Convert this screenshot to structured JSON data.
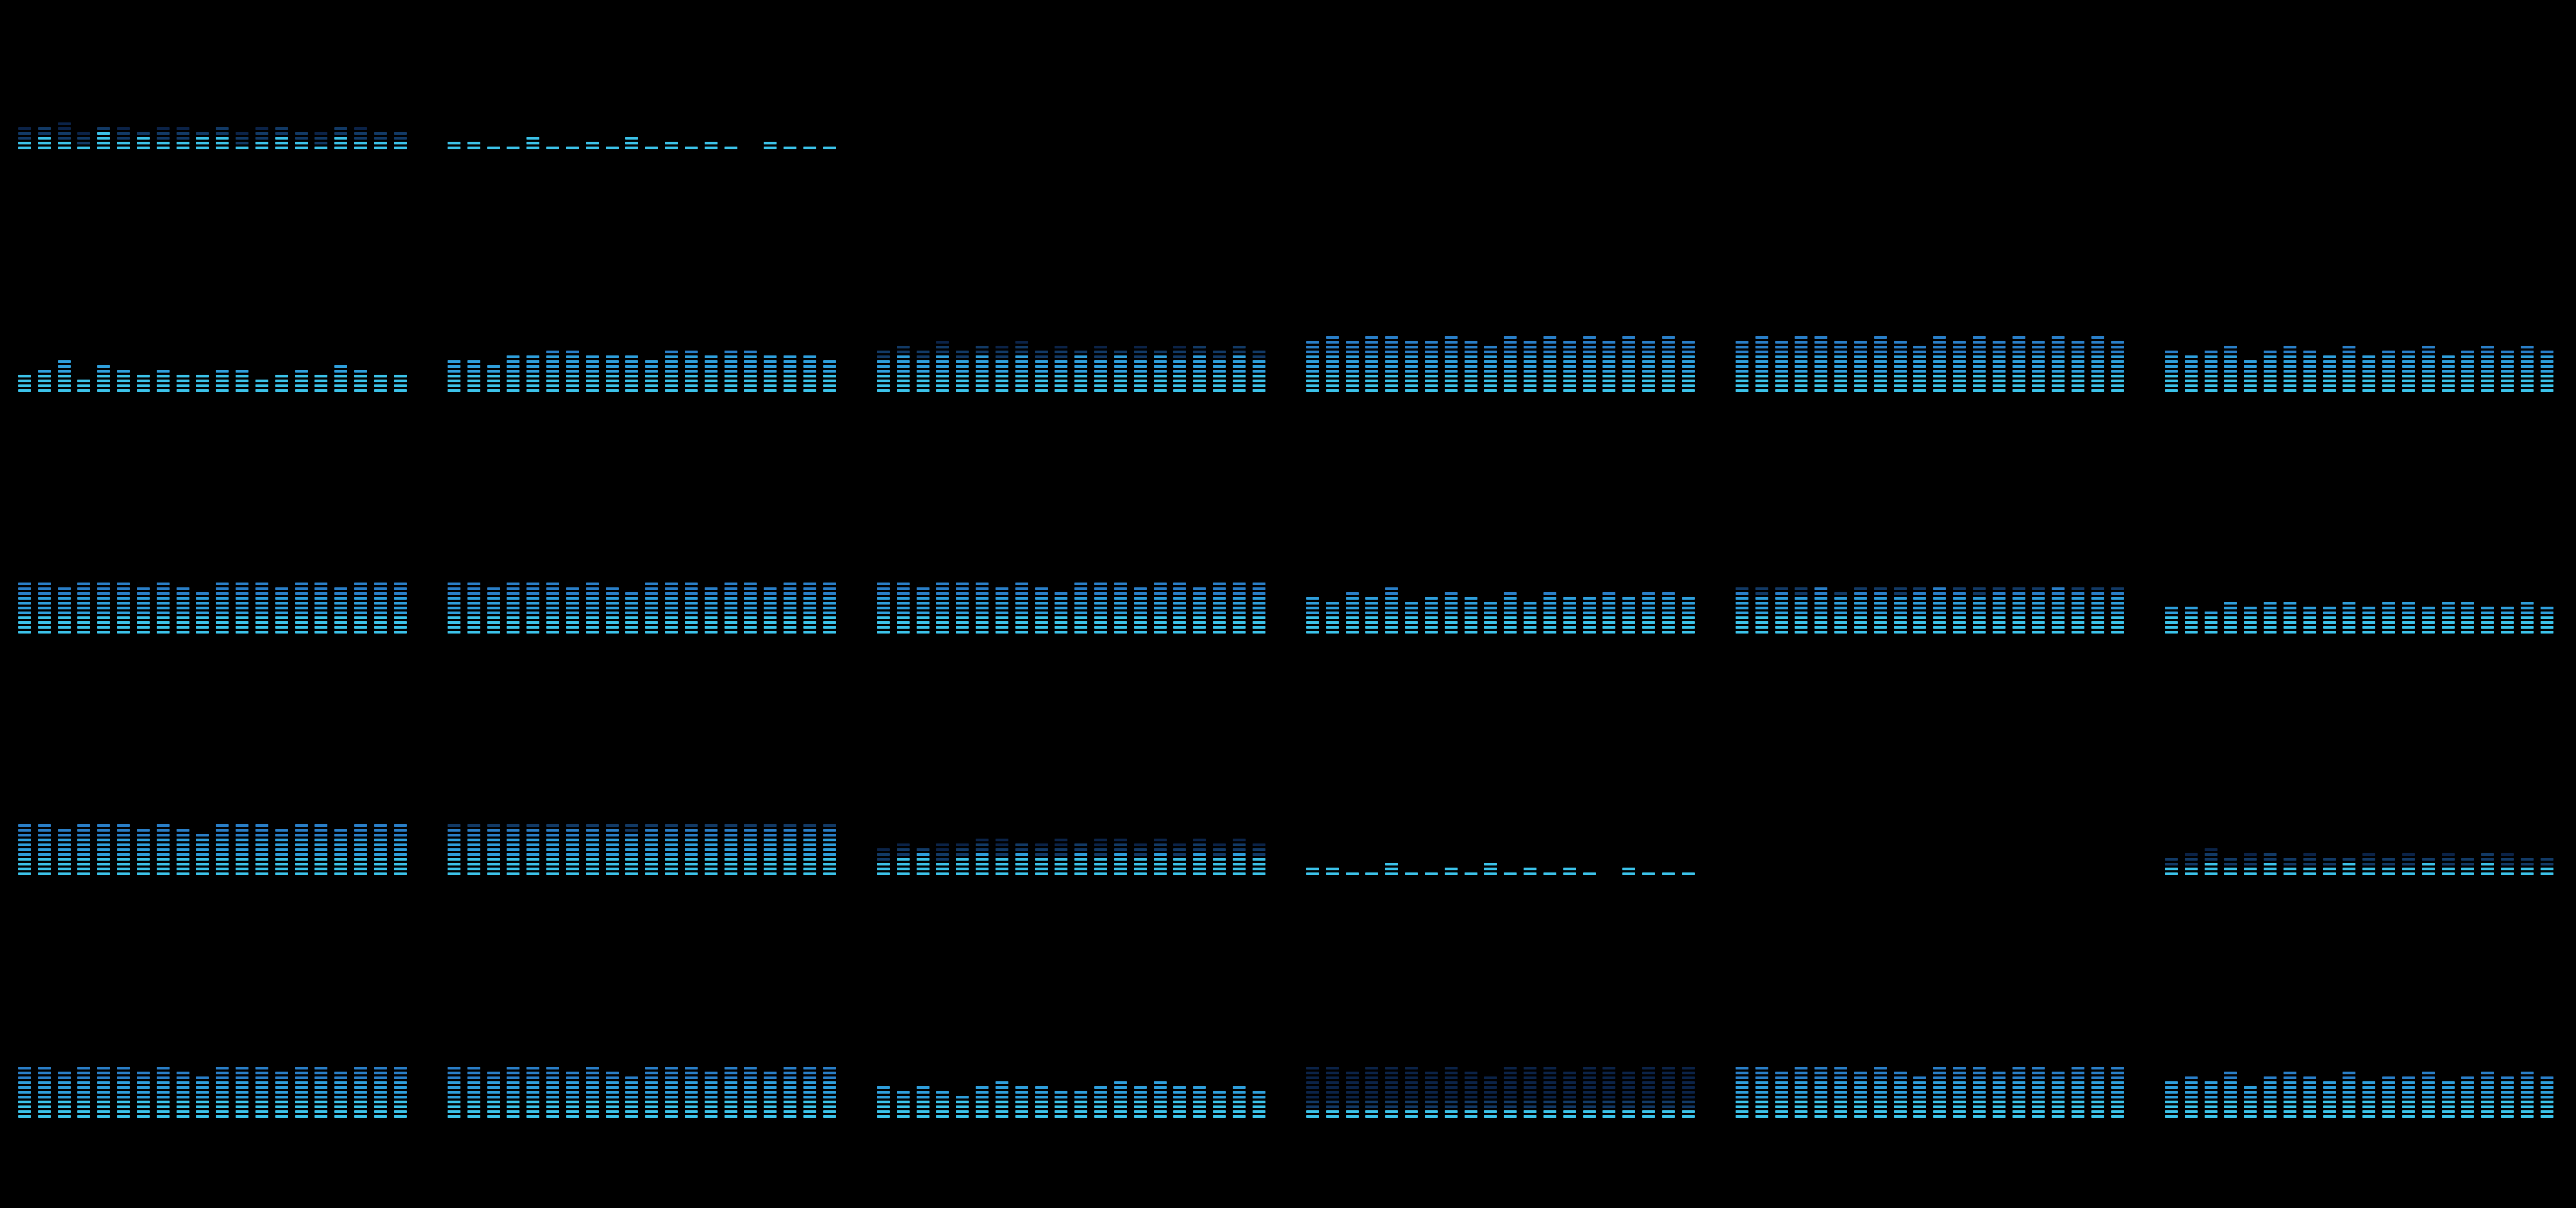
{
  "colors": {
    "background": "#000000",
    "lit_low": "#3cc3ea",
    "lit_mid": "#2f9fdc",
    "lit_high": "#2a7fc8",
    "dim_low": "#123a66",
    "dim_high": "#0b2348"
  },
  "grid": {
    "rows": 5,
    "columns": 6,
    "bands_per_meter": 20,
    "segments_per_band": 12
  },
  "meters": [
    {
      "name": "r1c1",
      "lit": [
        2,
        3,
        2,
        1,
        4,
        2,
        3,
        2,
        2,
        3,
        3,
        1,
        2,
        3,
        2,
        1,
        3,
        2,
        2,
        2
      ],
      "peak": [
        5,
        5,
        6,
        4,
        5,
        5,
        4,
        5,
        5,
        4,
        5,
        4,
        5,
        5,
        4,
        4,
        5,
        5,
        4,
        4
      ]
    },
    {
      "name": "r1c2",
      "lit": [
        2,
        2,
        1,
        1,
        3,
        1,
        1,
        2,
        1,
        3,
        1,
        2,
        1,
        2,
        1,
        0,
        2,
        1,
        1,
        1
      ],
      "peak": [
        2,
        2,
        1,
        1,
        3,
        1,
        1,
        2,
        1,
        3,
        1,
        2,
        1,
        2,
        1,
        0,
        2,
        1,
        1,
        1
      ]
    },
    {
      "name": "r1c3",
      "lit": [],
      "peak": []
    },
    {
      "name": "r1c4",
      "lit": [],
      "peak": []
    },
    {
      "name": "r1c5",
      "lit": [],
      "peak": []
    },
    {
      "name": "r1c6",
      "lit": [],
      "peak": []
    },
    {
      "name": "r2c1",
      "lit": [
        4,
        5,
        7,
        3,
        6,
        5,
        4,
        5,
        4,
        4,
        5,
        5,
        3,
        4,
        5,
        4,
        6,
        5,
        4,
        4
      ],
      "peak": [
        4,
        5,
        7,
        3,
        6,
        5,
        4,
        5,
        4,
        4,
        5,
        5,
        3,
        4,
        5,
        4,
        6,
        5,
        4,
        4
      ]
    },
    {
      "name": "r2c2",
      "lit": [
        7,
        7,
        6,
        8,
        8,
        9,
        9,
        8,
        8,
        8,
        7,
        9,
        9,
        8,
        9,
        9,
        8,
        8,
        8,
        7
      ],
      "peak": [
        7,
        7,
        6,
        8,
        8,
        9,
        9,
        8,
        8,
        8,
        7,
        9,
        9,
        8,
        9,
        9,
        8,
        8,
        8,
        7
      ]
    },
    {
      "name": "r2c3",
      "lit": [
        7,
        8,
        7,
        8,
        7,
        8,
        7,
        8,
        7,
        7,
        8,
        7,
        8,
        7,
        8,
        7,
        8,
        7,
        8,
        7
      ],
      "peak": [
        9,
        10,
        9,
        11,
        9,
        10,
        10,
        11,
        9,
        10,
        9,
        10,
        9,
        10,
        9,
        10,
        10,
        9,
        10,
        9
      ]
    },
    {
      "name": "r2c4",
      "lit": [
        11,
        12,
        11,
        12,
        12,
        11,
        11,
        12,
        11,
        10,
        12,
        11,
        12,
        11,
        12,
        11,
        12,
        11,
        12,
        11
      ],
      "peak": [
        11,
        12,
        11,
        12,
        12,
        11,
        11,
        12,
        11,
        10,
        12,
        11,
        12,
        11,
        12,
        11,
        12,
        11,
        12,
        11
      ]
    },
    {
      "name": "r2c5",
      "lit": [
        11,
        12,
        11,
        12,
        12,
        11,
        11,
        12,
        11,
        10,
        12,
        11,
        12,
        11,
        12,
        11,
        12,
        11,
        12,
        11
      ],
      "peak": [
        11,
        12,
        11,
        12,
        12,
        11,
        11,
        12,
        11,
        10,
        12,
        11,
        12,
        11,
        12,
        11,
        12,
        11,
        12,
        11
      ]
    },
    {
      "name": "r2c6",
      "lit": [
        9,
        8,
        9,
        10,
        7,
        9,
        10,
        9,
        8,
        10,
        8,
        9,
        9,
        10,
        8,
        9,
        10,
        9,
        10,
        9
      ],
      "peak": [
        9,
        8,
        9,
        10,
        7,
        9,
        10,
        9,
        8,
        10,
        8,
        9,
        9,
        10,
        8,
        9,
        10,
        9,
        10,
        9
      ]
    },
    {
      "name": "r3c1",
      "lit": [
        11,
        11,
        10,
        11,
        11,
        11,
        10,
        11,
        10,
        9,
        11,
        11,
        11,
        10,
        11,
        11,
        10,
        11,
        11,
        11
      ],
      "peak": [
        11,
        11,
        10,
        11,
        11,
        11,
        10,
        11,
        10,
        9,
        11,
        11,
        11,
        10,
        11,
        11,
        10,
        11,
        11,
        11
      ]
    },
    {
      "name": "r3c2",
      "lit": [
        11,
        11,
        10,
        11,
        11,
        11,
        10,
        11,
        10,
        9,
        11,
        11,
        11,
        10,
        11,
        11,
        10,
        11,
        11,
        11
      ],
      "peak": [
        11,
        11,
        10,
        11,
        11,
        11,
        10,
        11,
        10,
        9,
        11,
        11,
        11,
        10,
        11,
        11,
        10,
        11,
        11,
        11
      ]
    },
    {
      "name": "r3c3",
      "lit": [
        11,
        11,
        10,
        11,
        11,
        11,
        10,
        11,
        10,
        9,
        11,
        11,
        11,
        10,
        11,
        11,
        10,
        11,
        11,
        11
      ],
      "peak": [
        11,
        11,
        10,
        11,
        11,
        11,
        10,
        11,
        10,
        9,
        11,
        11,
        11,
        10,
        11,
        11,
        10,
        11,
        11,
        11
      ]
    },
    {
      "name": "r3c4",
      "lit": [
        8,
        7,
        9,
        8,
        10,
        7,
        8,
        9,
        8,
        7,
        9,
        7,
        9,
        8,
        8,
        9,
        8,
        9,
        9,
        8
      ],
      "peak": [
        8,
        7,
        9,
        8,
        10,
        7,
        8,
        9,
        8,
        7,
        9,
        7,
        9,
        8,
        8,
        9,
        8,
        9,
        9,
        8
      ]
    },
    {
      "name": "r3c5",
      "lit": [
        9,
        8,
        9,
        8,
        10,
        8,
        9,
        9,
        8,
        9,
        10,
        9,
        8,
        9,
        9,
        9,
        10,
        9,
        9,
        9
      ],
      "peak": [
        10,
        10,
        10,
        10,
        10,
        9,
        10,
        10,
        10,
        10,
        10,
        10,
        10,
        10,
        10,
        10,
        10,
        10,
        10,
        10
      ]
    },
    {
      "name": "r3c6",
      "lit": [
        6,
        6,
        5,
        7,
        6,
        7,
        7,
        6,
        6,
        7,
        6,
        7,
        7,
        6,
        7,
        7,
        6,
        6,
        7,
        6
      ],
      "peak": [
        6,
        6,
        5,
        7,
        6,
        7,
        7,
        6,
        6,
        7,
        6,
        7,
        7,
        6,
        7,
        7,
        6,
        6,
        7,
        6
      ]
    },
    {
      "name": "r4c1",
      "lit": [
        11,
        11,
        10,
        11,
        11,
        11,
        10,
        11,
        10,
        9,
        11,
        11,
        11,
        10,
        11,
        11,
        10,
        11,
        11,
        11
      ],
      "peak": [
        11,
        11,
        10,
        11,
        11,
        11,
        10,
        11,
        10,
        9,
        11,
        11,
        11,
        10,
        11,
        11,
        10,
        11,
        11,
        11
      ]
    },
    {
      "name": "r4c2",
      "lit": [
        10,
        10,
        10,
        10,
        10,
        10,
        10,
        10,
        10,
        9,
        10,
        10,
        10,
        10,
        10,
        10,
        10,
        10,
        10,
        10
      ],
      "peak": [
        11,
        11,
        11,
        11,
        11,
        11,
        11,
        11,
        11,
        11,
        11,
        11,
        11,
        11,
        11,
        11,
        11,
        11,
        11,
        11
      ]
    },
    {
      "name": "r4c3",
      "lit": [
        3,
        4,
        5,
        3,
        4,
        5,
        4,
        5,
        4,
        4,
        5,
        4,
        5,
        4,
        5,
        4,
        5,
        4,
        5,
        4
      ],
      "peak": [
        6,
        7,
        6,
        7,
        7,
        8,
        8,
        7,
        7,
        8,
        7,
        8,
        8,
        7,
        8,
        7,
        8,
        7,
        8,
        7
      ]
    },
    {
      "name": "r4c4",
      "lit": [
        2,
        2,
        1,
        1,
        3,
        1,
        1,
        2,
        1,
        3,
        1,
        2,
        1,
        2,
        1,
        0,
        2,
        1,
        1,
        1
      ],
      "peak": [
        2,
        2,
        1,
        1,
        3,
        1,
        1,
        2,
        1,
        3,
        1,
        2,
        1,
        2,
        1,
        0,
        2,
        1,
        1,
        1
      ]
    },
    {
      "name": "r4c5",
      "lit": [],
      "peak": []
    },
    {
      "name": "r4c6",
      "lit": [
        2,
        2,
        3,
        2,
        2,
        3,
        2,
        2,
        2,
        3,
        2,
        2,
        2,
        3,
        2,
        2,
        3,
        2,
        2,
        2
      ],
      "peak": [
        4,
        5,
        6,
        4,
        5,
        5,
        4,
        5,
        4,
        4,
        5,
        4,
        5,
        4,
        5,
        4,
        5,
        5,
        4,
        4
      ]
    },
    {
      "name": "r5c1",
      "lit": [
        11,
        11,
        10,
        11,
        11,
        11,
        10,
        11,
        10,
        9,
        11,
        11,
        11,
        10,
        11,
        11,
        10,
        11,
        11,
        11
      ],
      "peak": [
        11,
        11,
        10,
        11,
        11,
        11,
        10,
        11,
        10,
        9,
        11,
        11,
        11,
        10,
        11,
        11,
        10,
        11,
        11,
        11
      ]
    },
    {
      "name": "r5c2",
      "lit": [
        11,
        11,
        10,
        11,
        11,
        11,
        10,
        11,
        10,
        9,
        11,
        11,
        11,
        10,
        11,
        11,
        10,
        11,
        11,
        11
      ],
      "peak": [
        11,
        11,
        10,
        11,
        11,
        11,
        10,
        11,
        10,
        9,
        11,
        11,
        11,
        10,
        11,
        11,
        10,
        11,
        11,
        11
      ]
    },
    {
      "name": "r5c3",
      "lit": [
        7,
        6,
        7,
        6,
        5,
        7,
        8,
        7,
        7,
        6,
        6,
        7,
        8,
        7,
        8,
        7,
        7,
        6,
        7,
        6
      ],
      "peak": [
        7,
        6,
        7,
        6,
        5,
        7,
        8,
        7,
        7,
        6,
        6,
        7,
        8,
        7,
        8,
        7,
        7,
        6,
        7,
        6
      ]
    },
    {
      "name": "r5c4",
      "lit": [
        2,
        2,
        2,
        2,
        2,
        2,
        2,
        2,
        2,
        2,
        2,
        2,
        2,
        2,
        2,
        2,
        2,
        2,
        2,
        2
      ],
      "peak": [
        11,
        11,
        10,
        11,
        11,
        11,
        10,
        11,
        10,
        9,
        11,
        11,
        11,
        10,
        11,
        11,
        10,
        11,
        11,
        11
      ]
    },
    {
      "name": "r5c5",
      "lit": [
        11,
        11,
        10,
        11,
        11,
        11,
        10,
        11,
        10,
        9,
        11,
        11,
        11,
        10,
        11,
        11,
        10,
        11,
        11,
        11
      ],
      "peak": [
        11,
        11,
        10,
        11,
        11,
        11,
        10,
        11,
        10,
        9,
        11,
        11,
        11,
        10,
        11,
        11,
        10,
        11,
        11,
        11
      ]
    },
    {
      "name": "r5c6",
      "lit": [
        8,
        9,
        8,
        10,
        7,
        9,
        10,
        9,
        8,
        10,
        8,
        9,
        9,
        10,
        8,
        9,
        10,
        9,
        10,
        9
      ],
      "peak": [
        8,
        9,
        8,
        10,
        7,
        9,
        10,
        9,
        8,
        10,
        8,
        9,
        9,
        10,
        8,
        9,
        10,
        9,
        10,
        9
      ]
    }
  ]
}
